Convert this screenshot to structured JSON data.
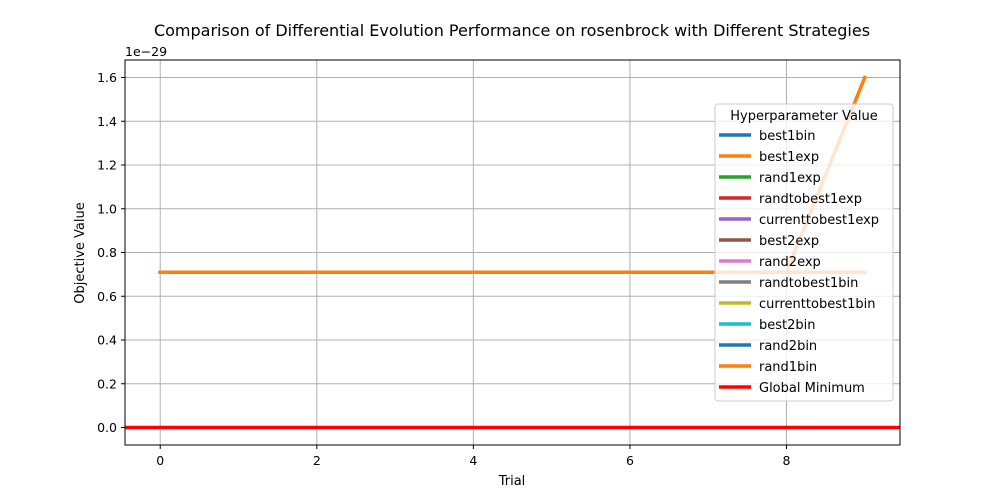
{
  "chart_data": {
    "type": "line",
    "title": "Comparison of Differential Evolution Performance on rosenbrock with Different Strategies",
    "xlabel": "Trial",
    "ylabel": "Objective Value",
    "y_offset_label": "1e−29",
    "xlim": [
      -0.45,
      9.45
    ],
    "ylim": [
      -0.08,
      1.68
    ],
    "x_ticks": [
      0,
      2,
      4,
      6,
      8
    ],
    "x_tick_labels": [
      "0",
      "2",
      "4",
      "6",
      "8"
    ],
    "y_ticks": [
      0.0,
      0.2,
      0.4,
      0.6,
      0.8,
      1.0,
      1.2,
      1.4,
      1.6
    ],
    "y_tick_labels": [
      "0.0",
      "0.2",
      "0.4",
      "0.6",
      "0.8",
      "1.0",
      "1.2",
      "1.4",
      "1.6"
    ],
    "grid": true,
    "legend_title": "Hyperparameter Value",
    "legend_position": "right",
    "x": [
      0,
      1,
      2,
      3,
      4,
      5,
      6,
      7,
      8,
      9
    ],
    "series": [
      {
        "name": "best1bin",
        "color": "#1f77b4",
        "values": [
          0.71,
          0.71,
          0.71,
          0.71,
          0.71,
          0.71,
          0.71,
          0.71,
          0.71,
          0.71
        ]
      },
      {
        "name": "best1exp",
        "color": "#ff7f0e",
        "values": [
          0.71,
          0.71,
          0.71,
          0.71,
          0.71,
          0.71,
          0.71,
          0.71,
          0.71,
          1.6
        ]
      },
      {
        "name": "rand1exp",
        "color": "#2ca02c",
        "values": [
          0.71,
          0.71,
          0.71,
          0.71,
          0.71,
          0.71,
          0.71,
          0.71,
          0.71,
          0.71
        ]
      },
      {
        "name": "randtobest1exp",
        "color": "#d62728",
        "values": [
          0.71,
          0.71,
          0.71,
          0.71,
          0.71,
          0.71,
          0.71,
          0.71,
          0.71,
          0.71
        ]
      },
      {
        "name": "currenttobest1exp",
        "color": "#9467bd",
        "values": [
          0.71,
          0.71,
          0.71,
          0.71,
          0.71,
          0.71,
          0.71,
          0.71,
          0.71,
          0.71
        ]
      },
      {
        "name": "best2exp",
        "color": "#8c564b",
        "values": [
          0.71,
          0.71,
          0.71,
          0.71,
          0.71,
          0.71,
          0.71,
          0.71,
          0.71,
          0.71
        ]
      },
      {
        "name": "rand2exp",
        "color": "#e377c2",
        "values": [
          0.71,
          0.71,
          0.71,
          0.71,
          0.71,
          0.71,
          0.71,
          0.71,
          0.71,
          0.71
        ]
      },
      {
        "name": "randtobest1bin",
        "color": "#7f7f7f",
        "values": [
          0.71,
          0.71,
          0.71,
          0.71,
          0.71,
          0.71,
          0.71,
          0.71,
          0.71,
          0.71
        ]
      },
      {
        "name": "currenttobest1bin",
        "color": "#bcbd22",
        "values": [
          0.71,
          0.71,
          0.71,
          0.71,
          0.71,
          0.71,
          0.71,
          0.71,
          0.71,
          0.71
        ]
      },
      {
        "name": "best2bin",
        "color": "#17becf",
        "values": [
          0.71,
          0.71,
          0.71,
          0.71,
          0.71,
          0.71,
          0.71,
          0.71,
          0.71,
          0.71
        ]
      },
      {
        "name": "rand2bin",
        "color": "#1f77b4",
        "values": [
          0.71,
          0.71,
          0.71,
          0.71,
          0.71,
          0.71,
          0.71,
          0.71,
          0.71,
          0.71
        ]
      },
      {
        "name": "rand1bin",
        "color": "#ff7f0e",
        "values": [
          0.71,
          0.71,
          0.71,
          0.71,
          0.71,
          0.71,
          0.71,
          0.71,
          0.71,
          0.71
        ]
      }
    ],
    "reference_line": {
      "name": "Global Minimum",
      "color": "#ff0000",
      "value": 0.0
    }
  }
}
